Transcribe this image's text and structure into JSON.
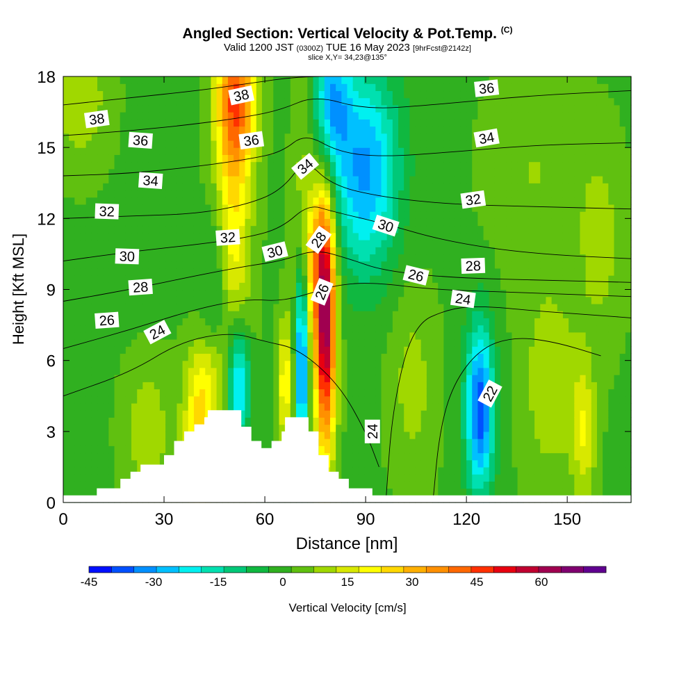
{
  "title": {
    "main": "Angled Section: Vertical Velocity & Pot.Temp.",
    "copyright": "(C)",
    "valid_prefix": "Valid 1200 JST",
    "valid_utc": "(0300Z)",
    "valid_date": "TUE 16 May 2023",
    "forecast": "[9hrFcst@2142z]",
    "slice": "slice X,Y= 34,23@135°"
  },
  "chart_data": {
    "type": "heatmap",
    "xlabel": "Distance [nm]",
    "ylabel": "Height [Kft MSL]",
    "xlim": [
      0,
      169
    ],
    "ylim": [
      0,
      18
    ],
    "x_ticks": [
      0,
      30,
      60,
      90,
      120,
      150
    ],
    "y_ticks": [
      0,
      3,
      6,
      9,
      12,
      15,
      18
    ],
    "colorbar": {
      "label": "Vertical Velocity [cm/s]",
      "tick_values": [
        -45,
        -30,
        -15,
        0,
        15,
        30,
        45,
        60
      ],
      "tick_labels": [
        "-45",
        "-30",
        "-15",
        "0",
        "15",
        "30",
        "45",
        "60"
      ],
      "min": -45,
      "max": 70,
      "step": 5,
      "colors": [
        "#0010ff",
        "#0050ff",
        "#0090ff",
        "#00c0ff",
        "#00f0f0",
        "#00e0b0",
        "#00c878",
        "#10b840",
        "#30b020",
        "#60c010",
        "#a0d800",
        "#d8e800",
        "#ffff00",
        "#ffd800",
        "#ffb000",
        "#ff9000",
        "#ff6800",
        "#ff3000",
        "#e80010",
        "#c00030",
        "#a00050",
        "#800070",
        "#600090"
      ]
    },
    "field": {
      "description_free": true,
      "background_value": -1,
      "blobs": [
        {
          "x": 50,
          "y": 12,
          "sx": 4,
          "sy": 7,
          "v": 22
        },
        {
          "x": 52,
          "y": 17,
          "sx": 4,
          "sy": 2,
          "v": 28
        },
        {
          "x": 78,
          "y": 7,
          "sx": 2.2,
          "sy": 3.5,
          "v": 55
        },
        {
          "x": 76,
          "y": 11,
          "sx": 3,
          "sy": 2.5,
          "v": 25
        },
        {
          "x": 72,
          "y": 13,
          "sx": 2.5,
          "sy": 3,
          "v": 18
        },
        {
          "x": 66,
          "y": 5,
          "sx": 1.5,
          "sy": 2,
          "v": 20
        },
        {
          "x": 42,
          "y": 5,
          "sx": 4,
          "sy": 1.5,
          "v": 18
        },
        {
          "x": 52,
          "y": 5,
          "sx": 2.5,
          "sy": 2,
          "v": -35
        },
        {
          "x": 46,
          "y": 9,
          "sx": 3,
          "sy": 3,
          "v": -14
        },
        {
          "x": 71,
          "y": 6,
          "sx": 1.2,
          "sy": 3,
          "v": -38
        },
        {
          "x": 73,
          "y": 13,
          "sx": 2.5,
          "sy": 2,
          "v": -15
        },
        {
          "x": 90,
          "y": 14,
          "sx": 7,
          "sy": 3,
          "v": -30
        },
        {
          "x": 80,
          "y": 17,
          "sx": 4,
          "sy": 2,
          "v": -25
        },
        {
          "x": 124,
          "y": 4,
          "sx": 3,
          "sy": 2.5,
          "v": -38
        },
        {
          "x": 145,
          "y": 5,
          "sx": 6,
          "sy": 3,
          "v": 10
        },
        {
          "x": 155,
          "y": 3,
          "sx": 2.5,
          "sy": 2,
          "v": 15
        },
        {
          "x": 25,
          "y": 3,
          "sx": 5,
          "sy": 2,
          "v": 10
        },
        {
          "x": 40,
          "y": 2,
          "sx": 3,
          "sy": 1.5,
          "v": 25
        },
        {
          "x": 5,
          "y": 17,
          "sx": 6,
          "sy": 2,
          "v": 10
        },
        {
          "x": 104,
          "y": 5,
          "sx": 5,
          "sy": 3,
          "v": 8
        },
        {
          "x": 140,
          "y": 14,
          "sx": 10,
          "sy": 3,
          "v": 6
        },
        {
          "x": 160,
          "y": 11,
          "sx": 5,
          "sy": 3,
          "v": 8
        }
      ]
    },
    "theta_contours": [
      {
        "label": "22",
        "pts": [
          [
            110,
            0
          ],
          [
            112,
            3
          ],
          [
            116,
            5
          ],
          [
            124,
            6.5
          ],
          [
            134,
            7
          ],
          [
            146,
            6.8
          ],
          [
            160,
            6.2
          ]
        ]
      },
      {
        "label": "24",
        "pts": [
          [
            0,
            4.5
          ],
          [
            20,
            5.5
          ],
          [
            35,
            6.8
          ],
          [
            50,
            7.2
          ],
          [
            60,
            6.8
          ],
          [
            70,
            6.5
          ],
          [
            82,
            5
          ],
          [
            90,
            3
          ],
          [
            94,
            1.5
          ]
        ]
      },
      {
        "label": "24",
        "pts": [
          [
            96,
            0
          ],
          [
            98,
            4
          ],
          [
            104,
            7.5
          ],
          [
            115,
            8.2
          ],
          [
            125,
            8.3
          ],
          [
            140,
            8.1
          ],
          [
            160,
            7.9
          ],
          [
            169,
            7.8
          ]
        ]
      },
      {
        "label": "26",
        "pts": [
          [
            0,
            6.5
          ],
          [
            20,
            7.3
          ],
          [
            40,
            8.2
          ],
          [
            55,
            8.6
          ],
          [
            65,
            8.5
          ],
          [
            75,
            8.9
          ],
          [
            82,
            9.2
          ],
          [
            92,
            9.3
          ],
          [
            110,
            9
          ],
          [
            130,
            8.9
          ],
          [
            169,
            8.7
          ]
        ]
      },
      {
        "label": "28",
        "pts": [
          [
            0,
            8.5
          ],
          [
            20,
            9
          ],
          [
            40,
            9.6
          ],
          [
            55,
            10
          ],
          [
            65,
            10.2
          ],
          [
            75,
            10.7
          ],
          [
            85,
            10.3
          ],
          [
            95,
            9.8
          ],
          [
            115,
            9.5
          ],
          [
            140,
            9.4
          ],
          [
            169,
            9.3
          ]
        ]
      },
      {
        "label": "30",
        "pts": [
          [
            0,
            10.2
          ],
          [
            20,
            10.6
          ],
          [
            40,
            10.9
          ],
          [
            55,
            11.2
          ],
          [
            65,
            11.6
          ],
          [
            73,
            12.6
          ],
          [
            80,
            12.3
          ],
          [
            95,
            11.8
          ],
          [
            115,
            11
          ],
          [
            140,
            10.5
          ],
          [
            169,
            10.3
          ]
        ]
      },
      {
        "label": "32",
        "pts": [
          [
            0,
            12
          ],
          [
            20,
            12.1
          ],
          [
            40,
            12.2
          ],
          [
            55,
            12.6
          ],
          [
            65,
            13.2
          ],
          [
            72,
            14.5
          ],
          [
            80,
            13.4
          ],
          [
            95,
            12.9
          ],
          [
            115,
            12.6
          ],
          [
            140,
            12.5
          ],
          [
            169,
            12.4
          ]
        ]
      },
      {
        "label": "34",
        "pts": [
          [
            0,
            13.8
          ],
          [
            20,
            13.9
          ],
          [
            40,
            14.2
          ],
          [
            55,
            14.5
          ],
          [
            65,
            14.8
          ],
          [
            72,
            15.6
          ],
          [
            82,
            14.8
          ],
          [
            95,
            14.6
          ],
          [
            115,
            14.8
          ],
          [
            140,
            15.1
          ],
          [
            169,
            15.2
          ]
        ]
      },
      {
        "label": "36",
        "pts": [
          [
            0,
            15.5
          ],
          [
            20,
            15.7
          ],
          [
            40,
            16
          ],
          [
            55,
            16.3
          ],
          [
            65,
            16.6
          ],
          [
            75,
            17.2
          ],
          [
            90,
            16.6
          ],
          [
            110,
            16.8
          ],
          [
            140,
            17.2
          ],
          [
            169,
            17.4
          ]
        ]
      },
      {
        "label": "38",
        "pts": [
          [
            0,
            16.8
          ],
          [
            20,
            17.1
          ],
          [
            40,
            17.4
          ],
          [
            55,
            17.7
          ],
          [
            70,
            18
          ],
          [
            85,
            18
          ]
        ]
      }
    ],
    "theta_labels": [
      {
        "text": "38",
        "x": 10,
        "y": 16.2,
        "rot": -8
      },
      {
        "text": "38",
        "x": 53,
        "y": 17.2,
        "rot": -12
      },
      {
        "text": "36",
        "x": 23,
        "y": 15.3,
        "rot": 4
      },
      {
        "text": "36",
        "x": 56,
        "y": 15.3,
        "rot": -8
      },
      {
        "text": "36",
        "x": 126,
        "y": 17.5,
        "rot": -6
      },
      {
        "text": "34",
        "x": 26,
        "y": 13.6,
        "rot": 4
      },
      {
        "text": "34",
        "x": 72,
        "y": 14.2,
        "rot": -40
      },
      {
        "text": "34",
        "x": 126,
        "y": 15.4,
        "rot": -10
      },
      {
        "text": "32",
        "x": 13,
        "y": 12.3,
        "rot": 2
      },
      {
        "text": "32",
        "x": 49,
        "y": 11.2,
        "rot": -4
      },
      {
        "text": "32",
        "x": 122,
        "y": 12.8,
        "rot": -8
      },
      {
        "text": "30",
        "x": 19,
        "y": 10.4,
        "rot": 2
      },
      {
        "text": "30",
        "x": 63,
        "y": 10.6,
        "rot": -14
      },
      {
        "text": "30",
        "x": 96,
        "y": 11.7,
        "rot": 18
      },
      {
        "text": "28",
        "x": 23,
        "y": 9.1,
        "rot": -4
      },
      {
        "text": "28",
        "x": 76,
        "y": 11.1,
        "rot": -55
      },
      {
        "text": "28",
        "x": 122,
        "y": 10,
        "rot": -2
      },
      {
        "text": "26",
        "x": 13,
        "y": 7.7,
        "rot": -4
      },
      {
        "text": "26",
        "x": 77,
        "y": 8.9,
        "rot": -68
      },
      {
        "text": "26",
        "x": 105,
        "y": 9.6,
        "rot": 14
      },
      {
        "text": "24",
        "x": 28,
        "y": 7.2,
        "rot": -28
      },
      {
        "text": "24",
        "x": 119,
        "y": 8.6,
        "rot": 8
      },
      {
        "text": "24",
        "x": 92,
        "y": 3,
        "rot": -90
      },
      {
        "text": "22",
        "x": 127,
        "y": 4.6,
        "rot": -62
      }
    ],
    "terrain": [
      [
        0,
        0.3
      ],
      [
        10,
        0.3
      ],
      [
        10,
        0.6
      ],
      [
        17,
        0.6
      ],
      [
        17,
        1
      ],
      [
        20,
        1
      ],
      [
        20,
        1.3
      ],
      [
        23,
        1.3
      ],
      [
        23,
        1.6
      ],
      [
        30,
        1.6
      ],
      [
        30,
        2
      ],
      [
        33,
        2
      ],
      [
        33,
        2.6
      ],
      [
        36,
        2.6
      ],
      [
        36,
        3
      ],
      [
        39,
        3
      ],
      [
        39,
        3.3
      ],
      [
        42,
        3.3
      ],
      [
        42,
        3.6
      ],
      [
        43,
        3.6
      ],
      [
        43,
        3.9
      ],
      [
        53,
        3.9
      ],
      [
        53,
        3.2
      ],
      [
        56,
        3.2
      ],
      [
        56,
        2.6
      ],
      [
        59,
        2.6
      ],
      [
        59,
        2.3
      ],
      [
        62,
        2.3
      ],
      [
        62,
        2.6
      ],
      [
        65,
        2.6
      ],
      [
        65,
        3
      ],
      [
        66,
        3
      ],
      [
        66,
        3.6
      ],
      [
        73,
        3.6
      ],
      [
        73,
        3
      ],
      [
        76,
        3
      ],
      [
        76,
        2
      ],
      [
        79,
        2
      ],
      [
        79,
        1.3
      ],
      [
        82,
        1.3
      ],
      [
        82,
        1
      ],
      [
        85,
        1
      ],
      [
        85,
        0.6
      ],
      [
        92,
        0.6
      ],
      [
        92,
        0.3
      ],
      [
        169,
        0.3
      ]
    ]
  }
}
